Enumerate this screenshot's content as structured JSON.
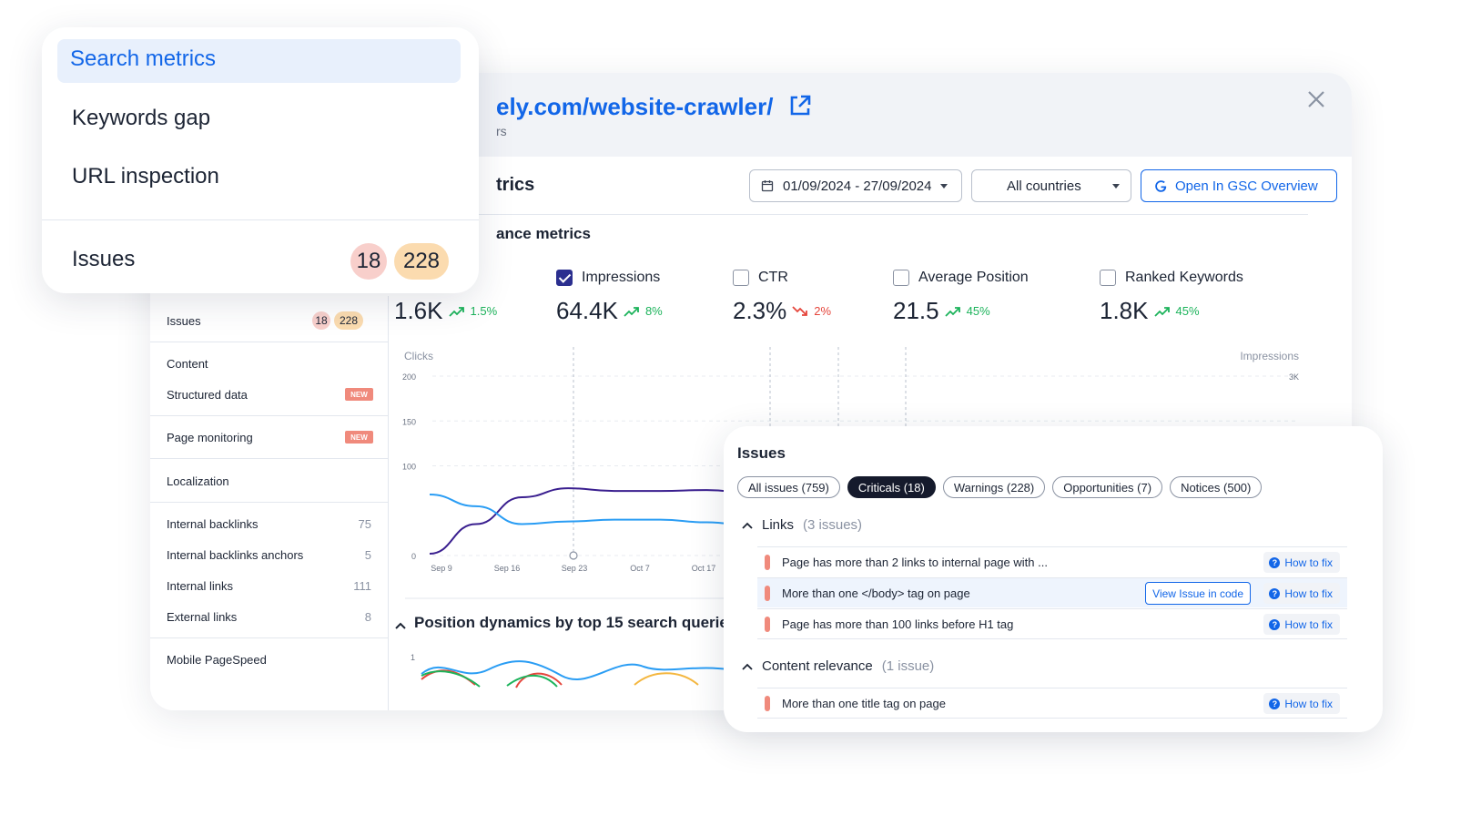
{
  "colors": {
    "accent": "#1266e8",
    "clicks_line": "#3a1f8f",
    "impressions_line": "#2a9df4",
    "up": "#1cb35b",
    "down": "#e5463c",
    "critical_marker": "#f08a7c"
  },
  "dropdown_menu": {
    "items": [
      "Search metrics",
      "Keywords gap",
      "URL inspection"
    ],
    "active_item": "Search metrics",
    "issues_label": "Issues",
    "issues_critical": "18",
    "issues_warning": "228"
  },
  "panel": {
    "url": "ely.com/website-crawler/",
    "subtitle": "rs",
    "section_title": "trics",
    "date_range": "01/09/2024 - 27/09/2024",
    "countries": "All countries",
    "gsc_button": "Open In GSC Overview",
    "subsection_title": "ance metrics",
    "position_title": "Position dynamics by top 15 search queries"
  },
  "metrics": [
    {
      "label": "",
      "value": "1.6K",
      "change": "1.5%",
      "trend": "up",
      "checked": true,
      "partial": true
    },
    {
      "label": "Impressions",
      "value": "64.4K",
      "change": "8%",
      "trend": "up",
      "checked": true
    },
    {
      "label": "CTR",
      "value": "2.3%",
      "change": "2%",
      "trend": "down",
      "checked": false
    },
    {
      "label": "Average Position",
      "value": "21.5",
      "change": "45%",
      "trend": "up",
      "checked": false
    },
    {
      "label": "Ranked Keywords",
      "value": "1.8K",
      "change": "45%",
      "trend": "up",
      "checked": false
    }
  ],
  "sidebar": {
    "issues_label": "Issues",
    "issues_critical": "18",
    "issues_warning": "228",
    "content_label": "Content",
    "structured_data": "Structured data",
    "page_monitoring": "Page monitoring",
    "new_badge": "NEW",
    "localization": "Localization",
    "links": [
      {
        "label": "Internal backlinks",
        "count": "75"
      },
      {
        "label": "Internal backlinks anchors",
        "count": "5"
      },
      {
        "label": "Internal links",
        "count": "111"
      },
      {
        "label": "External links",
        "count": "8"
      }
    ],
    "mobile_pagespeed": "Mobile PageSpeed"
  },
  "chart_data": {
    "type": "line",
    "x_label": "Clicks",
    "y2_label": "Impressions",
    "y_ticks": [
      "200",
      "150",
      "100",
      "0"
    ],
    "y2_ticks": [
      "3K"
    ],
    "x_ticks": [
      "Sep 9",
      "Sep 16",
      "Sep 23",
      "Oct 7",
      "Oct 17"
    ],
    "ylim": [
      0,
      200
    ],
    "series": [
      {
        "name": "Clicks",
        "color": "#3a1f8f",
        "values": [
          2,
          35,
          65,
          75,
          72,
          72,
          73,
          70
        ]
      },
      {
        "name": "Impressions",
        "color": "#2a9df4",
        "values": [
          68,
          55,
          35,
          38,
          40,
          40,
          37,
          33
        ]
      }
    ],
    "position_ticks": [
      "1"
    ]
  },
  "issues_card": {
    "title": "Issues",
    "filters": [
      {
        "label": "All issues (759)",
        "active": false
      },
      {
        "label": "Criticals (18)",
        "active": true
      },
      {
        "label": "Warnings (228)",
        "active": false
      },
      {
        "label": "Opportunities (7)",
        "active": false
      },
      {
        "label": "Notices (500)",
        "active": false
      }
    ],
    "groups": [
      {
        "name": "Links",
        "count": "(3 issues)",
        "rows": [
          {
            "text": "Page has more than 2 links to internal page with ...",
            "view_code": ""
          },
          {
            "text": "More than one </body> tag on page",
            "view_code": "View Issue in code"
          },
          {
            "text": "Page has more than 100 links before H1 tag",
            "view_code": ""
          }
        ]
      },
      {
        "name": "Content relevance",
        "count": "(1 issue)",
        "rows": [
          {
            "text": "More than one title tag on page",
            "view_code": ""
          }
        ]
      }
    ],
    "how_to_fix": "How to fix"
  }
}
